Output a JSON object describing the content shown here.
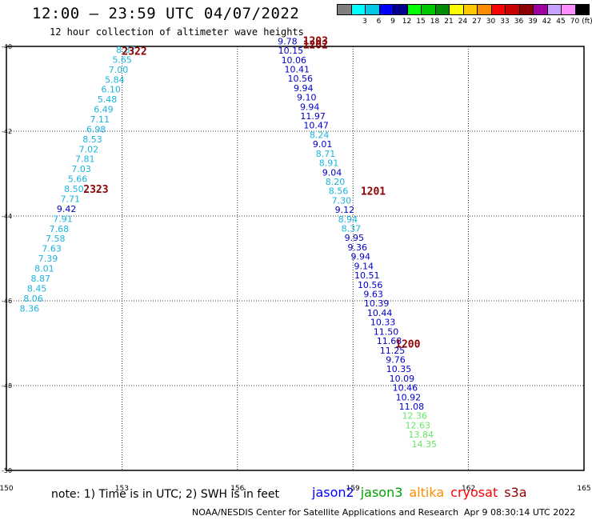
{
  "header": {
    "title": "12:00 — 23:59 UTC 04/07/2022",
    "subtitle": "12 hour collection of altimeter wave heights"
  },
  "legend": {
    "unit": "(ft)",
    "swatches": [
      {
        "color": "#7f7f7f",
        "label": ""
      },
      {
        "color": "#00ffff",
        "label": "3"
      },
      {
        "color": "#00c8e6",
        "label": "6"
      },
      {
        "color": "#0000ff",
        "label": "9"
      },
      {
        "color": "#00008c",
        "label": "12"
      },
      {
        "color": "#00ff00",
        "label": "15"
      },
      {
        "color": "#00c800",
        "label": "18"
      },
      {
        "color": "#008c00",
        "label": "21"
      },
      {
        "color": "#ffff00",
        "label": "24"
      },
      {
        "color": "#ffc800",
        "label": "27"
      },
      {
        "color": "#ff8c00",
        "label": "30"
      },
      {
        "color": "#ff0000",
        "label": "33"
      },
      {
        "color": "#c80000",
        "label": "36"
      },
      {
        "color": "#8c0000",
        "label": "39"
      },
      {
        "color": "#a000a0",
        "label": "42"
      },
      {
        "color": "#c8a0ff",
        "label": "45"
      },
      {
        "color": "#ff8cff",
        "label": "70"
      },
      {
        "color": "#000000",
        "label": ""
      }
    ]
  },
  "axes": {
    "lon_ticks": [
      "150",
      "153",
      "156",
      "159",
      "162",
      "165"
    ],
    "lat_ticks": [
      "-40",
      "-42",
      "-44",
      "-46",
      "-48",
      "-50"
    ],
    "lon_range": [
      150,
      165
    ],
    "lat_range": [
      -40,
      -50
    ]
  },
  "time_labels": [
    {
      "text": "1203",
      "lon": 157.7,
      "lat": -39.95,
      "color": "#8c0000"
    },
    {
      "text": "1202",
      "lon": 157.7,
      "lat": -40.05,
      "color": "#8c0000"
    },
    {
      "text": "1201",
      "lon": 159.2,
      "lat": -43.5,
      "color": "#8c0000"
    },
    {
      "text": "1200",
      "lon": 160.1,
      "lat": -47.1,
      "color": "#8c0000"
    },
    {
      "text": "2322",
      "lon": 153.0,
      "lat": -40.2,
      "color": "#8c0000"
    },
    {
      "text": "2323",
      "lon": 152.0,
      "lat": -43.45,
      "color": "#8c0000"
    }
  ],
  "track_west": {
    "color": "#1ab4dc",
    "values": [
      "8.87",
      "5.65",
      "7.00",
      "5.84",
      "6.10",
      "5.48",
      "6.49",
      "7.11",
      "6.98",
      "8.53",
      "7.02",
      "7.81",
      "7.03",
      "5.66",
      "8.50",
      "7.71",
      "9.42",
      "7.91",
      "7.68",
      "7.58",
      "7.63",
      "7.39",
      "8.01",
      "8.87",
      "8.45",
      "8.06",
      "8.36"
    ],
    "colors": [
      "#1ab4dc",
      "#1ab4dc",
      "#1ab4dc",
      "#1ab4dc",
      "#1ab4dc",
      "#1ab4dc",
      "#1ab4dc",
      "#1ab4dc",
      "#1ab4dc",
      "#1ab4dc",
      "#1ab4dc",
      "#1ab4dc",
      "#1ab4dc",
      "#1ab4dc",
      "#1ab4dc",
      "#1ab4dc",
      "#0000c8",
      "#1ab4dc",
      "#1ab4dc",
      "#1ab4dc",
      "#1ab4dc",
      "#1ab4dc",
      "#1ab4dc",
      "#1ab4dc",
      "#1ab4dc",
      "#1ab4dc",
      "#1ab4dc"
    ],
    "start": {
      "lon": 153.1,
      "lat": -40.15
    },
    "end": {
      "lon": 150.6,
      "lat": -46.25
    }
  },
  "track_east": {
    "values": [
      "9.78",
      "10.15",
      "10.06",
      "10.41",
      "10.56",
      "9.94",
      "9.10",
      "9.94",
      "11.97",
      "10.47",
      "8.24",
      "9.01",
      "8.71",
      "8.91",
      "9.04",
      "8.20",
      "8.56",
      "7.30",
      "9.12",
      "8.94",
      "8.37",
      "9.95",
      "9.36",
      "9.94",
      "9.14",
      "10.51",
      "10.56",
      "9.63",
      "10.39",
      "10.44",
      "10.33",
      "11.50",
      "11.68",
      "11.25",
      "9.76",
      "10.35",
      "10.09",
      "10.46",
      "10.92",
      "11.08",
      "12.36",
      "12.63",
      "13.84",
      "14.35"
    ],
    "colors": [
      "#0000c8",
      "#0000c8",
      "#0000c8",
      "#0000c8",
      "#0000c8",
      "#0000c8",
      "#0000c8",
      "#0000c8",
      "#0000c8",
      "#0000c8",
      "#1ab4dc",
      "#0000c8",
      "#1ab4dc",
      "#1ab4dc",
      "#0000c8",
      "#1ab4dc",
      "#1ab4dc",
      "#1ab4dc",
      "#0000c8",
      "#1ab4dc",
      "#1ab4dc",
      "#0000c8",
      "#0000c8",
      "#0000c8",
      "#0000c8",
      "#0000c8",
      "#0000c8",
      "#0000c8",
      "#0000c8",
      "#0000c8",
      "#0000c8",
      "#0000c8",
      "#0000c8",
      "#0000c8",
      "#0000c8",
      "#0000c8",
      "#0000c8",
      "#0000c8",
      "#0000c8",
      "#0000c8",
      "#66e666",
      "#66e666",
      "#66e666",
      "#66e666"
    ],
    "start": {
      "lon": 157.3,
      "lat": -39.95
    },
    "end": {
      "lon": 160.85,
      "lat": -49.45
    }
  },
  "footer": {
    "note": "note: 1) Time is in UTC; 2) SWH is in feet",
    "satellites": [
      {
        "name": "jason2",
        "color": "#0000ff"
      },
      {
        "name": "jason3",
        "color": "#00a000"
      },
      {
        "name": "altika",
        "color": "#ff8c00"
      },
      {
        "name": "cryosat",
        "color": "#ff0000"
      },
      {
        "name": "s3a",
        "color": "#8c0000"
      }
    ],
    "credit": "NOAA/NESDIS Center for Satellite Applications and Research",
    "timestamp": "Apr  9 08:30:14 UTC 2022"
  }
}
